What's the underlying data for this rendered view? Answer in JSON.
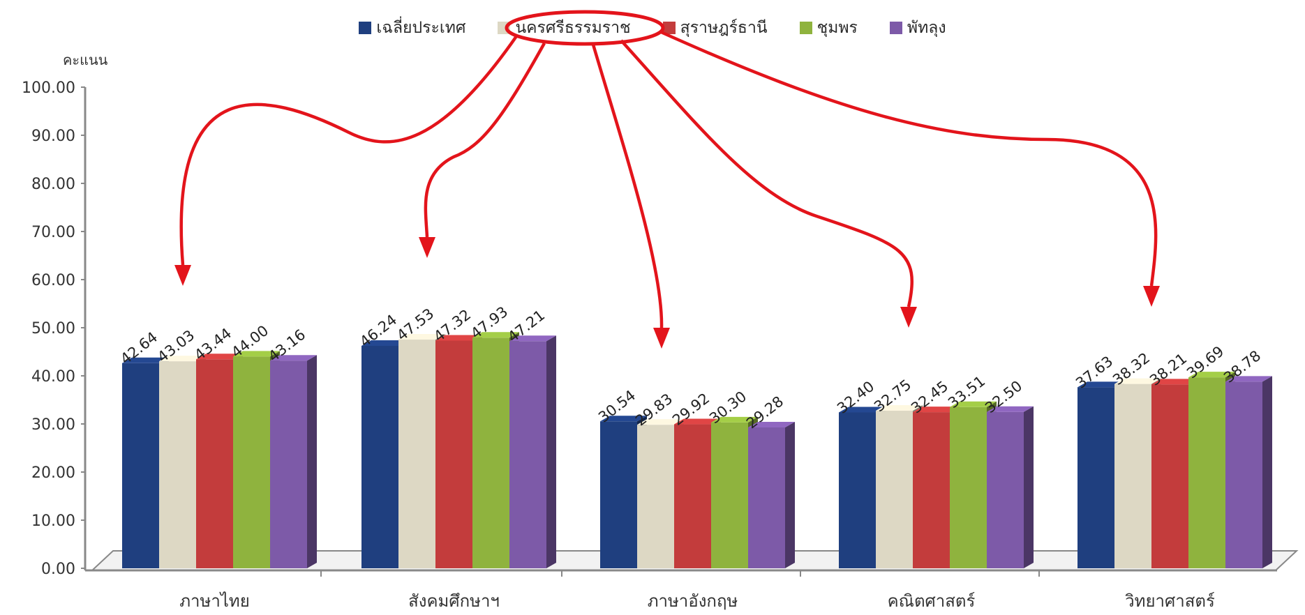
{
  "chart_data": {
    "type": "bar",
    "ylabel": "คะแนน",
    "ylim": [
      0,
      100
    ],
    "yticks": [
      "0.00",
      "10.00",
      "20.00",
      "30.00",
      "40.00",
      "50.00",
      "60.00",
      "70.00",
      "80.00",
      "90.00",
      "100.00"
    ],
    "categories": [
      "ภาษาไทย",
      "สังคมศึกษาฯ",
      "ภาษาอังกฤษ",
      "คณิตศาสตร์",
      "วิทยาศาสตร์"
    ],
    "series": [
      {
        "name": "เฉลี่ยประเทศ",
        "color": "#1f3f7f",
        "values": [
          42.64,
          46.24,
          30.54,
          32.4,
          37.63
        ],
        "labels": [
          "42.64",
          "46.24",
          "30.54",
          "32.40",
          "37.63"
        ]
      },
      {
        "name": "นครศรีธรรมราช",
        "color": "#ddd8c4",
        "values": [
          43.03,
          47.53,
          29.83,
          32.75,
          38.32
        ],
        "labels": [
          "43.03",
          "47.53",
          "29.83",
          "32.75",
          "38.32"
        ]
      },
      {
        "name": "สุราษฎร์ธานี",
        "color": "#c33c3c",
        "values": [
          43.44,
          47.32,
          29.92,
          32.45,
          38.21
        ],
        "labels": [
          "43.44",
          "47.32",
          "29.92",
          "32.45",
          "38.21"
        ]
      },
      {
        "name": "ชุมพร",
        "color": "#8fb33e",
        "values": [
          44.0,
          47.93,
          30.3,
          33.51,
          39.69
        ],
        "labels": [
          "44.00",
          "47.93",
          "30.30",
          "33.51",
          "39.69"
        ]
      },
      {
        "name": "พัทลุง",
        "color": "#7d5aa8",
        "values": [
          43.16,
          47.21,
          29.28,
          32.5,
          38.78
        ],
        "labels": [
          "43.16",
          "47.21",
          "29.28",
          "32.50",
          "38.78"
        ]
      }
    ],
    "grid": false,
    "legend_position": "top",
    "annotation": {
      "type": "circle-with-arrows",
      "target_series": "นครศรีธรรมราช",
      "color": "#e3141b"
    }
  }
}
